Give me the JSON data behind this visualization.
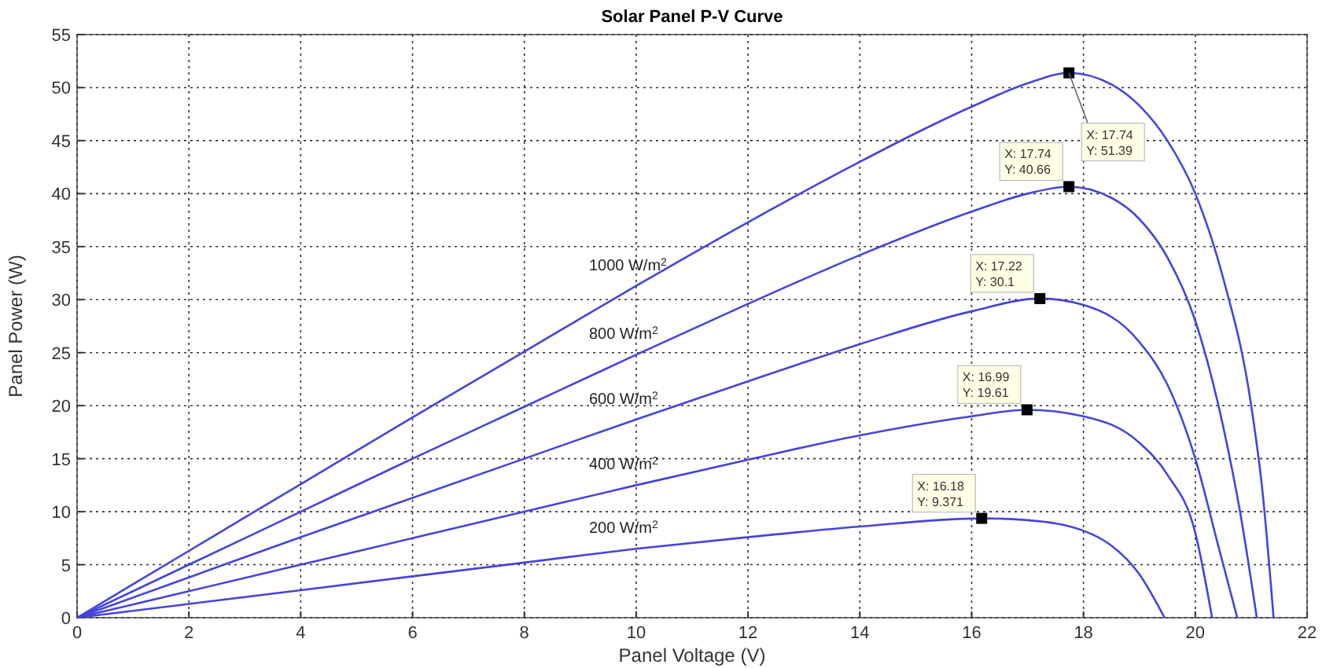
{
  "chart_data": {
    "type": "line",
    "title": "Solar Panel P-V Curve",
    "xlabel": "Panel Voltage (V)",
    "ylabel": "Panel Power (W)",
    "xlim": [
      0,
      22
    ],
    "xticks": [
      0,
      2,
      4,
      6,
      8,
      10,
      12,
      14,
      16,
      18,
      20,
      22
    ],
    "ylim": [
      0,
      55
    ],
    "yticks": [
      0,
      5,
      10,
      15,
      20,
      25,
      30,
      35,
      40,
      45,
      50,
      55
    ],
    "grid": true,
    "marker": "none",
    "line_style": "solid",
    "series": [
      {
        "name": "1000 W/m$^{2}$",
        "color": "#4444dd",
        "x": [
          0,
          2,
          4,
          6,
          8,
          10,
          12,
          14,
          15,
          16,
          17,
          17.74,
          18.5,
          19,
          19.5,
          20,
          20.5,
          21,
          21.2,
          21.4
        ],
        "values": [
          0,
          6.3,
          12.6,
          18.9,
          25.1,
          31.3,
          37.3,
          43,
          45.7,
          48.2,
          50.4,
          51.39,
          50.3,
          48.3,
          45,
          40,
          32,
          20,
          12,
          0
        ]
      },
      {
        "name": "800 W/m$^{2}$",
        "color": "#4444dd",
        "x": [
          0,
          2,
          4,
          6,
          8,
          10,
          12,
          14,
          16,
          17,
          17.74,
          18.5,
          19,
          19.5,
          20,
          20.5,
          20.8,
          21.1
        ],
        "values": [
          0,
          5,
          10,
          15,
          19.9,
          24.8,
          29.6,
          34.2,
          38.3,
          40,
          40.66,
          39.6,
          37.6,
          34,
          28,
          18,
          10,
          0
        ]
      },
      {
        "name": "600 W/m$^{2}$",
        "color": "#4444dd",
        "x": [
          0,
          2,
          4,
          6,
          8,
          10,
          12,
          14,
          16,
          17.22,
          18,
          19,
          19.5,
          20,
          20.4,
          20.75
        ],
        "values": [
          0,
          3.8,
          7.6,
          11.3,
          15,
          18.7,
          22.3,
          25.8,
          28.9,
          30.1,
          29.5,
          26,
          22,
          15,
          7,
          0
        ]
      },
      {
        "name": "400 W/m$^{2}$",
        "color": "#4444dd",
        "x": [
          0,
          2,
          4,
          6,
          8,
          10,
          12,
          14,
          16,
          16.99,
          18,
          19,
          19.5,
          20,
          20.3
        ],
        "values": [
          0,
          2.5,
          5,
          7.5,
          10,
          12.5,
          14.9,
          17.2,
          19,
          19.61,
          19,
          16.5,
          13.5,
          8,
          0
        ]
      },
      {
        "name": "200 W/m$^{2}$",
        "color": "#4444dd",
        "x": [
          0,
          2,
          4,
          6,
          8,
          10,
          12,
          14,
          16.18,
          17,
          18,
          18.5,
          19,
          19.45
        ],
        "values": [
          0,
          1.3,
          2.6,
          3.9,
          5.2,
          6.5,
          7.6,
          8.6,
          9.371,
          9.2,
          8.2,
          6.8,
          4.1,
          0
        ]
      }
    ],
    "annotations": [
      {
        "text": "X: 17.74\nY: 51.39",
        "x": 17.74,
        "y": 51.39
      },
      {
        "text": "X: 17.74\nY: 40.66",
        "x": 17.74,
        "y": 40.66
      },
      {
        "text": "X: 17.22\nY: 30.1",
        "x": 17.22,
        "y": 30.1
      },
      {
        "text": "X: 16.99\nY: 19.61",
        "x": 16.99,
        "y": 19.61
      },
      {
        "text": "X: 16.18\nY: 9.371",
        "x": 16.18,
        "y": 9.371
      }
    ]
  }
}
